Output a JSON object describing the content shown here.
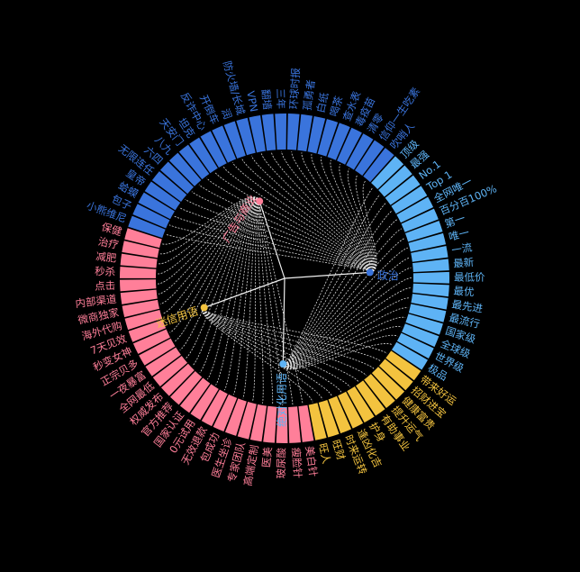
{
  "colors": {
    "background": "#000000",
    "link": "#f0f0f0",
    "ad_commerce": "#ff7f99",
    "politics": "#3a74dc",
    "absolute": "#5eb3f5",
    "superstition": "#f3c33f"
  },
  "diagram": {
    "type": "radial-tree",
    "root": "",
    "categories": [
      {
        "key": "politics",
        "name": "政治",
        "leaves": [
          "小熊维尼",
          "包子",
          "蛤蟆",
          "皇帝",
          "无限连任",
          "六四",
          "八九",
          "天安门",
          "坦克",
          "反诈中心",
          "开倒车",
          "润",
          "防火墙/长城",
          "VPN",
          "翻墙",
          "三年",
          "环球时报",
          "孤勇者",
          "白纸",
          "喝茶",
          "查水表",
          "毒疫苗",
          "清零",
          "信仰一生吃素",
          "吹哨人"
        ]
      },
      {
        "key": "absolute",
        "name": "绝对化用语",
        "leaves": [
          "顶级",
          "最强",
          "No.1",
          "Top 1",
          "全网唯一",
          "百分百100%",
          "第一",
          "唯一",
          "一流",
          "最新",
          "最低价",
          "最优",
          "最先进",
          "最流行",
          "国家级",
          "全球级",
          "世界级",
          "极品"
        ]
      },
      {
        "key": "superstition",
        "name": "迷信用语",
        "leaves": [
          "带来好运",
          "招财进宝",
          "健康富贵",
          "提升运气",
          "有助事业",
          "护身",
          "逢凶化吉",
          "时来运转",
          "旺财",
          "旺人"
        ]
      },
      {
        "key": "ad_commerce",
        "name": "广告与商业",
        "leaves": [
          "美白针",
          "瘦脸针",
          "玻尿酸",
          "医美",
          "高端定制",
          "专家团队",
          "医生坐诊",
          "包成功",
          "无效退款",
          "0元试用",
          "国家认证",
          "官方推荐",
          "权威发布",
          "全网最低",
          "一夜暴富",
          "正宗贝多",
          "秒变女神",
          "7天见效",
          "海外代购",
          "微商独家",
          "内部渠道",
          "点击",
          "秒杀",
          "减肥",
          "治疗",
          "保健"
        ]
      }
    ]
  }
}
